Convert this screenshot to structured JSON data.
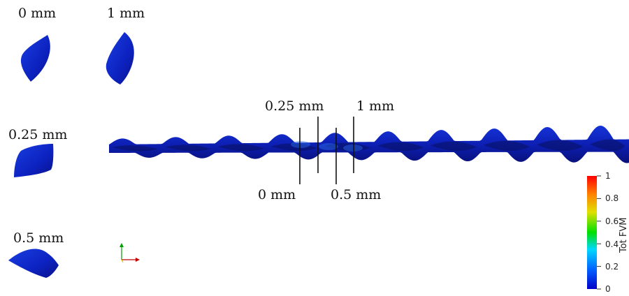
{
  "cross_sections": [
    {
      "label": "0 mm"
    },
    {
      "label": "1 mm"
    },
    {
      "label": "0.25 mm"
    },
    {
      "label": "0.5 mm"
    }
  ],
  "marker_labels": {
    "m025": "0.25 mm",
    "m1": "1 mm",
    "m0": "0 mm",
    "m05": "0.5 mm"
  },
  "colorbar": {
    "title": "Tot FVM",
    "min": 0,
    "max": 1,
    "ticks": [
      "1",
      "0.8",
      "0.6",
      "0.4",
      "0.2",
      "0"
    ],
    "colormap": [
      "#0000c8",
      "#0060ff",
      "#00d8ff",
      "#00e000",
      "#e0e000",
      "#ff8000",
      "#ff0000"
    ]
  },
  "colors": {
    "surface_dark": "#0a0f7a",
    "surface_mid": "#0c1cb8",
    "surface_light": "#1a3ee0",
    "axis_x": "#c00000",
    "axis_y": "#d8c000",
    "axis_z": "#00a000"
  }
}
